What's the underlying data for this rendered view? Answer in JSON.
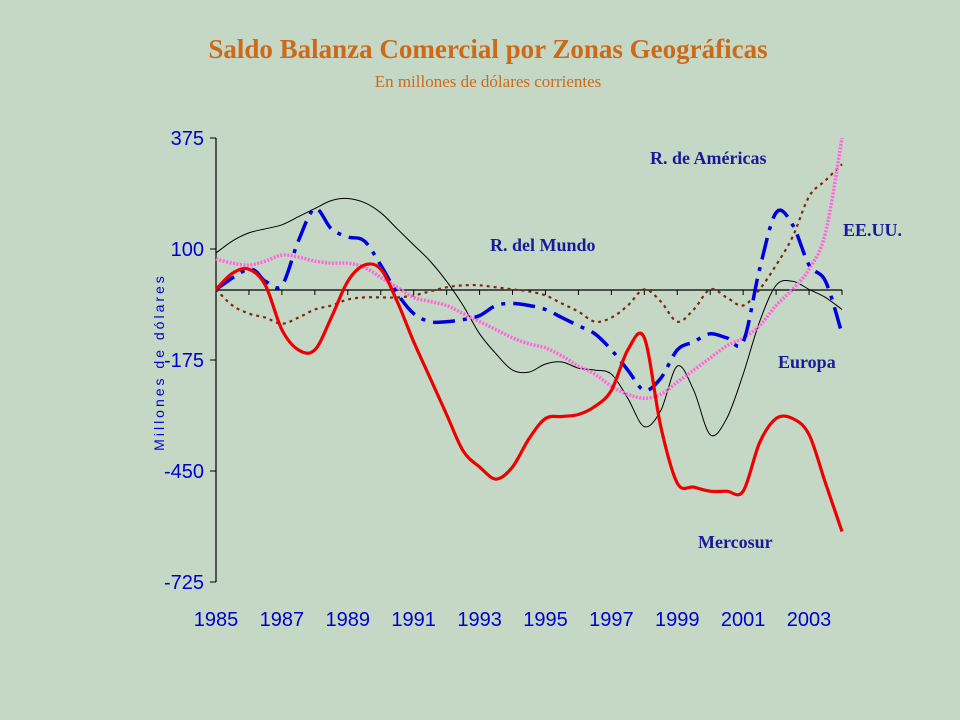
{
  "chart_data": {
    "type": "line",
    "title": "Saldo Balanza Comercial por Zonas Geográficas",
    "subtitle": "En millones de dólares corrientes",
    "ylabel": "Millones de dólares",
    "xlim": [
      1985,
      2004
    ],
    "ylim": [
      -725,
      375
    ],
    "yticks": [
      375,
      100,
      -175,
      -450,
      -725
    ],
    "xticks": [
      1985,
      1987,
      1989,
      1991,
      1993,
      1995,
      1997,
      1999,
      2001,
      2003
    ],
    "grid": false,
    "series": [
      {
        "name": "R. de Américas",
        "color": "#0000dd",
        "dash": "dashdot",
        "x": [
          1985,
          1986,
          1986.5,
          1987,
          1987.5,
          1988,
          1988.5,
          1989,
          1989.5,
          1990,
          1990.5,
          1991,
          1991.5,
          1992,
          1992.5,
          1993,
          1993.5,
          1994,
          1994.5,
          1995,
          1995.5,
          1996,
          1996.5,
          1997,
          1997.5,
          1998,
          1998.5,
          1999,
          1999.5,
          2000,
          2000.5,
          2001,
          2001.5,
          2002,
          2002.5,
          2003,
          2003.5,
          2004
        ],
        "y": [
          0,
          50,
          20,
          10,
          120,
          200,
          150,
          130,
          120,
          60,
          -10,
          -60,
          -80,
          -80,
          -75,
          -65,
          -40,
          -35,
          -40,
          -50,
          -70,
          -90,
          -110,
          -150,
          -200,
          -250,
          -220,
          -150,
          -130,
          -110,
          -120,
          -130,
          50,
          190,
          160,
          60,
          20,
          -110
        ]
      },
      {
        "name": "R. del Mundo",
        "color": "#000000",
        "dash": "solid",
        "x": [
          1985,
          1985.5,
          1986,
          1986.5,
          1987,
          1987.5,
          1988,
          1988.5,
          1989,
          1989.5,
          1990,
          1990.5,
          1991,
          1991.5,
          1992,
          1992.5,
          1993,
          1993.5,
          1994,
          1994.5,
          1995,
          1995.5,
          1996,
          1996.5,
          1997,
          1997.5,
          1998,
          1998.5,
          1999,
          1999.5,
          2000,
          2000.5,
          2001,
          2001.5,
          2002,
          2002.5,
          2003,
          2003.5,
          2004
        ],
        "y": [
          90,
          120,
          140,
          150,
          160,
          180,
          200,
          220,
          225,
          215,
          190,
          150,
          110,
          70,
          20,
          -40,
          -110,
          -160,
          -200,
          -205,
          -185,
          -180,
          -195,
          -200,
          -210,
          -270,
          -340,
          -300,
          -190,
          -250,
          -360,
          -320,
          -210,
          -80,
          10,
          20,
          0,
          -20,
          -50
        ]
      },
      {
        "name": "EE.UU.",
        "color": "#7a2a10",
        "dash": "dotted",
        "x": [
          1985,
          1985.5,
          1986,
          1986.5,
          1987,
          1987.5,
          1988,
          1988.5,
          1989,
          1989.5,
          1990,
          1990.5,
          1991,
          1991.5,
          1992,
          1992.5,
          1993,
          1993.5,
          1994,
          1994.5,
          1995,
          1995.5,
          1996,
          1996.5,
          1997,
          1997.5,
          1998,
          1998.5,
          1999,
          1999.5,
          2000,
          2000.5,
          2001,
          2001.5,
          2002,
          2002.5,
          2003,
          2003.5,
          2004
        ],
        "y": [
          0,
          -40,
          -60,
          -70,
          -85,
          -70,
          -50,
          -40,
          -25,
          -20,
          -20,
          -20,
          -15,
          -5,
          5,
          10,
          10,
          5,
          0,
          -5,
          -15,
          -35,
          -55,
          -80,
          -70,
          -40,
          0,
          -30,
          -80,
          -50,
          0,
          -20,
          -40,
          0,
          60,
          130,
          230,
          270,
          310
        ]
      },
      {
        "name": "Europa",
        "color": "#ff66dd",
        "dash": "dotted",
        "x": [
          1985,
          1985.5,
          1986,
          1986.5,
          1987,
          1987.5,
          1988,
          1988.5,
          1989,
          1989.5,
          1990,
          1990.5,
          1991,
          1991.5,
          1992,
          1992.5,
          1993,
          1993.5,
          1994,
          1994.5,
          1995,
          1995.5,
          1996,
          1996.5,
          1997,
          1997.5,
          1998,
          1998.5,
          1999,
          1999.5,
          2000,
          2000.5,
          2001,
          2001.5,
          2002,
          2002.5,
          2003,
          2003.5,
          2004
        ],
        "y": [
          75,
          65,
          60,
          70,
          85,
          80,
          70,
          65,
          65,
          55,
          30,
          5,
          -20,
          -30,
          -40,
          -60,
          -80,
          -100,
          -120,
          -135,
          -145,
          -165,
          -190,
          -210,
          -240,
          -260,
          -270,
          -260,
          -230,
          -200,
          -170,
          -140,
          -120,
          -90,
          -40,
          0,
          50,
          140,
          375
        ]
      },
      {
        "name": "Mercosur",
        "color": "#ee0000",
        "dash": "solid",
        "x": [
          1985,
          1985.5,
          1986,
          1986.5,
          1987,
          1987.5,
          1988,
          1988.5,
          1989,
          1989.5,
          1990,
          1990.5,
          1991,
          1991.5,
          1992,
          1992.5,
          1993,
          1993.5,
          1994,
          1994.5,
          1995,
          1995.5,
          1996,
          1996.5,
          1997,
          1997.5,
          1998,
          1998.5,
          1999,
          1999.5,
          2000,
          2000.5,
          2001,
          2001.5,
          2002,
          2002.5,
          2003,
          2003.5,
          2004
        ],
        "y": [
          0,
          40,
          50,
          10,
          -100,
          -150,
          -150,
          -70,
          20,
          60,
          50,
          -30,
          -130,
          -220,
          -310,
          -400,
          -440,
          -470,
          -440,
          -370,
          -320,
          -315,
          -310,
          -290,
          -250,
          -150,
          -120,
          -340,
          -480,
          -490,
          -500,
          -500,
          -500,
          -380,
          -320,
          -320,
          -360,
          -480,
          -600
        ]
      }
    ],
    "annotations": [
      "R. de Américas",
      "R. del Mundo",
      "EE.UU.",
      "Europa",
      "Mercosur"
    ]
  }
}
